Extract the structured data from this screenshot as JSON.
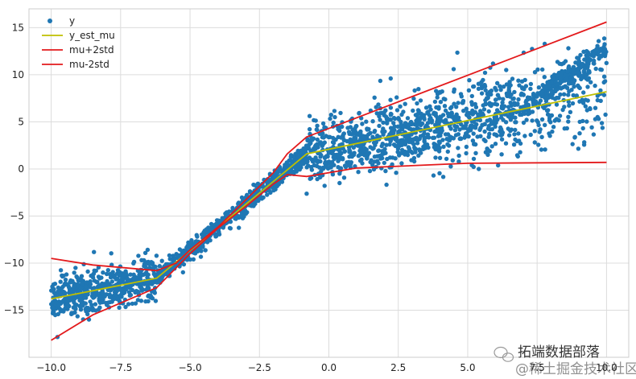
{
  "chart_data": {
    "type": "scatter",
    "title": "",
    "xlabel": "",
    "ylabel": "",
    "xlim": [
      -10.8,
      10.8
    ],
    "ylim": [
      -20,
      17
    ],
    "grid": true,
    "legend_position": "top-left",
    "x_ticks": [
      "−10.0",
      "−7.5",
      "−5.0",
      "−2.5",
      "0.0",
      "2.5",
      "5.0",
      "7.5",
      "10.0"
    ],
    "x_tick_values": [
      -10,
      -7.5,
      -5,
      -2.5,
      0,
      2.5,
      5,
      7.5,
      10
    ],
    "y_ticks": [
      "−15",
      "−10",
      "−5",
      "0",
      "5",
      "10",
      "15"
    ],
    "y_tick_values": [
      -15,
      -10,
      -5,
      0,
      5,
      10,
      15
    ],
    "series": [
      {
        "name": "y",
        "kind": "scatter",
        "color": "#1f77b4",
        "description_segments": [
          {
            "x_range": [
              -10,
              -6.2
            ],
            "trend_start": -13.8,
            "trend_end": -11.6,
            "spread": 1.2
          },
          {
            "x_range": [
              -6.2,
              -0.8
            ],
            "trend_start": -11.6,
            "trend_end": 1.6,
            "spread": 0.5
          },
          {
            "x_range": [
              -0.8,
              10
            ],
            "trend_start": 1.6,
            "trend_end": 8.2,
            "spread": 1.6
          }
        ]
      },
      {
        "name": "y_est_mu",
        "kind": "line",
        "color": "#bfbf00",
        "x": [
          -10,
          -6.2,
          -0.8,
          10
        ],
        "y": [
          -13.8,
          -11.6,
          1.6,
          8.2
        ]
      },
      {
        "name": "mu+2std",
        "kind": "line",
        "color": "#e31a1c",
        "x": [
          -10,
          -8.5,
          -6.2,
          -5.5,
          -5.0,
          -4.0,
          -3.0,
          -2.0,
          -1.5,
          -0.8,
          10
        ],
        "y": [
          -9.5,
          -10.2,
          -10.8,
          -10.0,
          -8.6,
          -6.2,
          -3.3,
          -0.4,
          1.6,
          3.4,
          15.6
        ]
      },
      {
        "name": "mu-2std",
        "kind": "line",
        "color": "#e31a1c",
        "x": [
          -10,
          -8.5,
          -6.2,
          -5.0,
          -4.0,
          -3.0,
          -2.0,
          -1.5,
          -0.8,
          1.0,
          5.0,
          10
        ],
        "y": [
          -18.2,
          -15.5,
          -12.6,
          -9.0,
          -6.3,
          -4.0,
          -1.6,
          -0.6,
          -0.8,
          0.1,
          0.6,
          0.7
        ]
      }
    ]
  },
  "watermark": {
    "line1": "拓端数据部落",
    "line2": "@稀土掘金技术社区"
  }
}
